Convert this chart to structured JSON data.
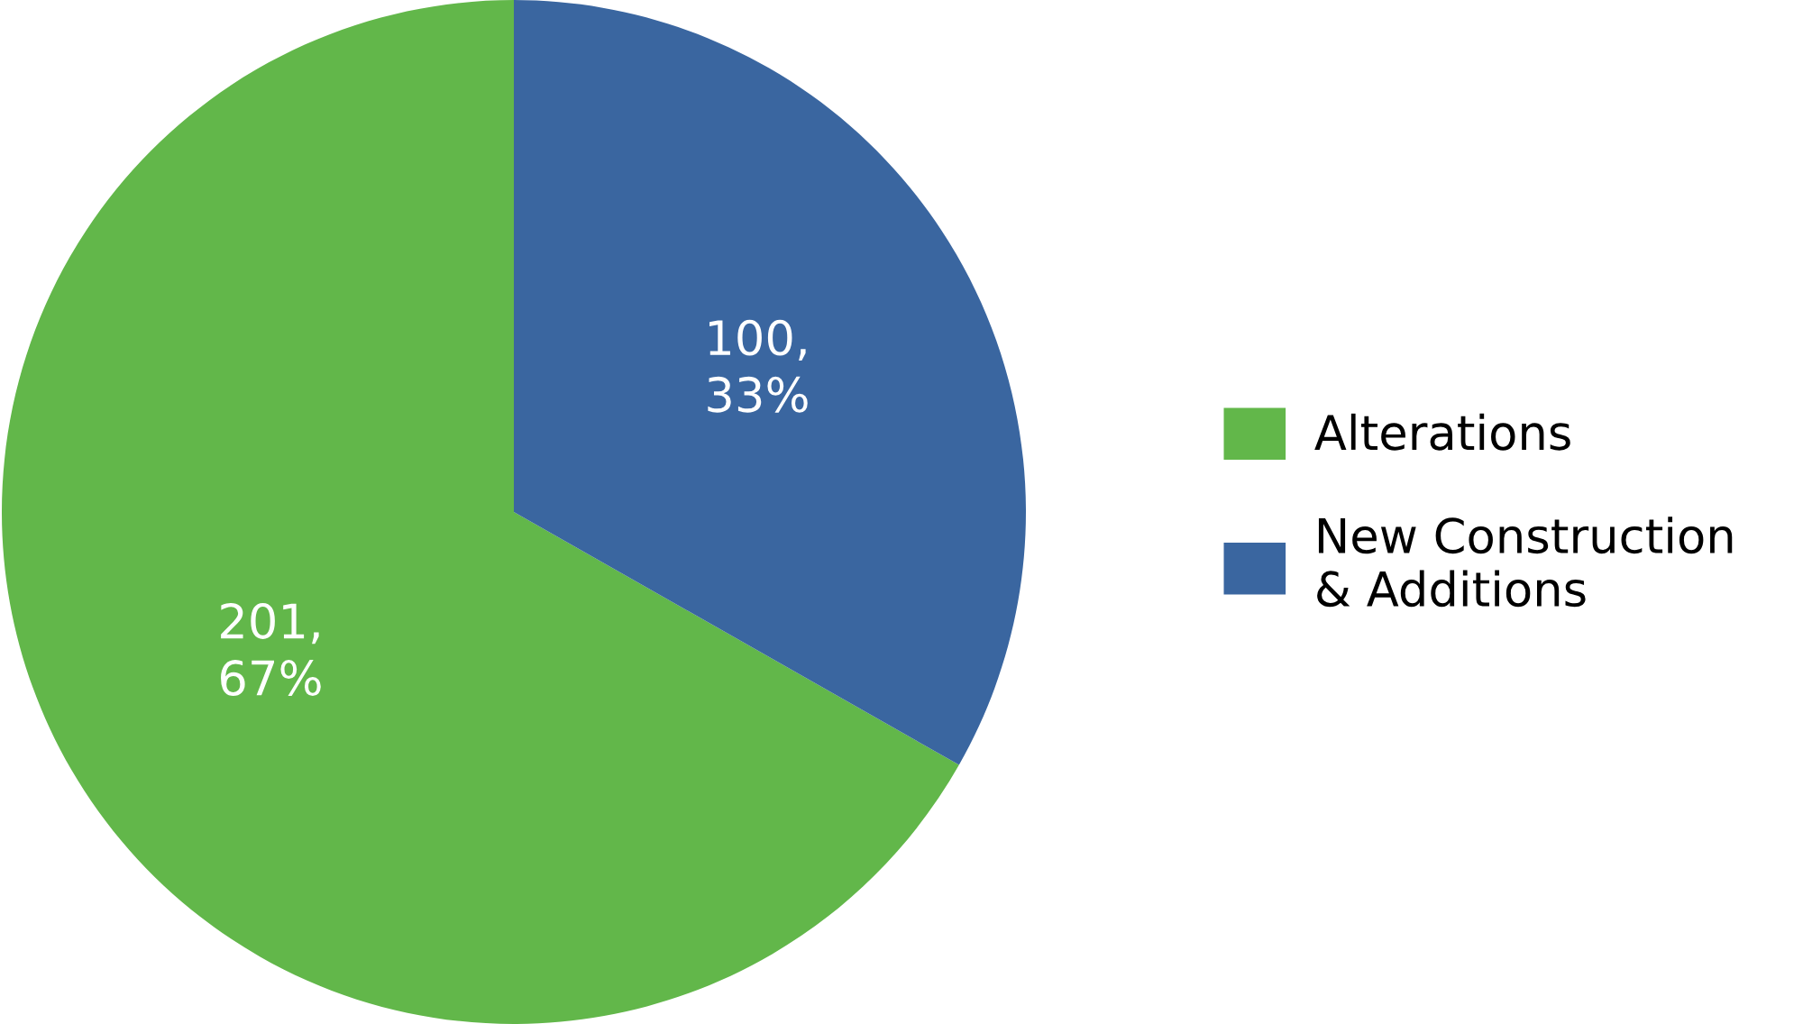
{
  "chart_data": {
    "type": "pie",
    "categories": [
      "Alterations",
      "New Construction\n& Additions"
    ],
    "values": [
      201,
      100
    ],
    "colors": [
      "#62b74a",
      "#3a66a0"
    ],
    "value_labels": [
      "201,\n67%",
      "100,\n33%"
    ],
    "legend": "right"
  }
}
